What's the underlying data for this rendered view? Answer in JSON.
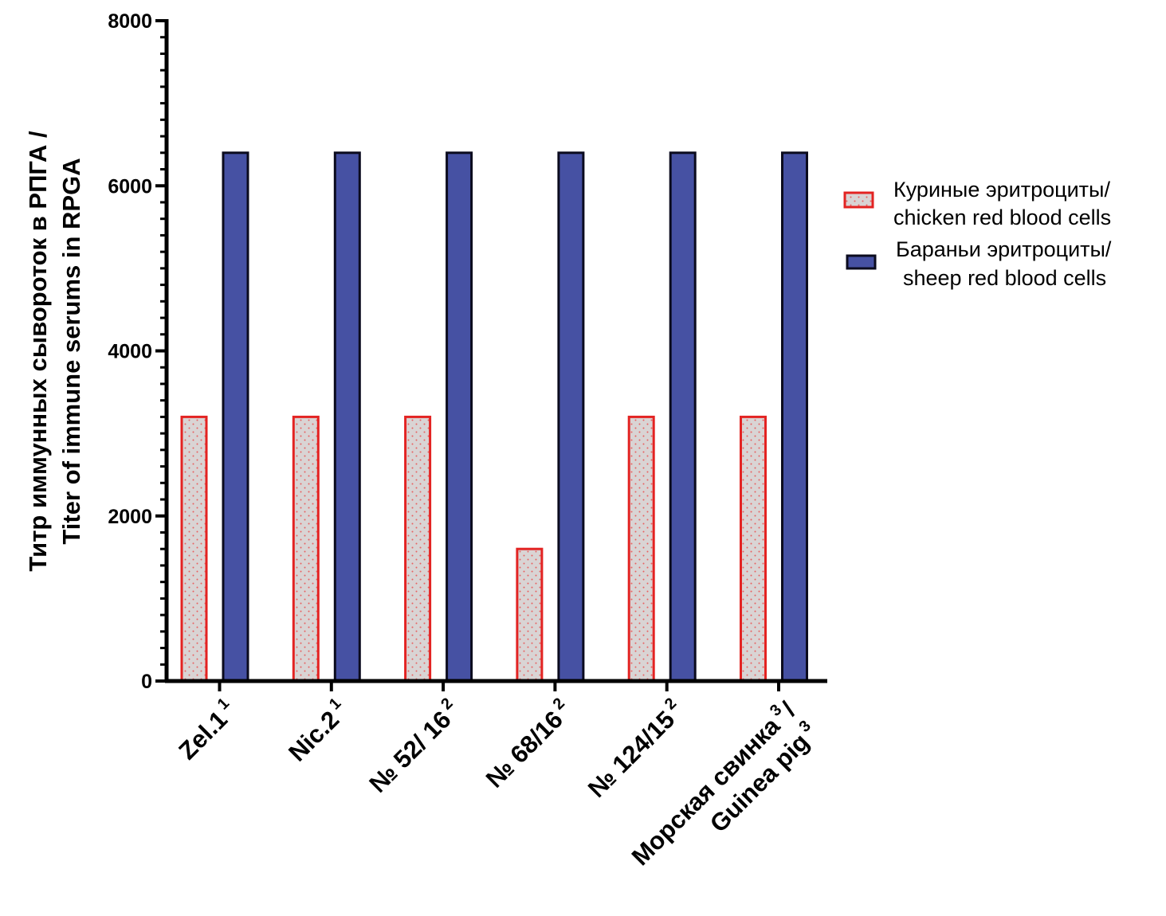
{
  "chart_data": {
    "type": "bar",
    "ylabel_lines": [
      "Титр иммунных сывороток в РПГА /",
      "Titer of immune serums in RPGA"
    ],
    "ylim": [
      0,
      8000
    ],
    "yticks": [
      0,
      2000,
      4000,
      6000,
      8000
    ],
    "ytick_labels": [
      "0",
      "2000",
      "4000",
      "6000",
      "8000"
    ],
    "minor_tick_step": 200,
    "categories": [
      {
        "lines": [
          {
            "text": "Zel.1",
            "sup": "1"
          }
        ]
      },
      {
        "lines": [
          {
            "text": "Nic.2",
            "sup": "1"
          }
        ]
      },
      {
        "lines": [
          {
            "text": "№ 52/ 16",
            "sup": "2"
          }
        ]
      },
      {
        "lines": [
          {
            "text": "№ 68/16",
            "sup": "2"
          }
        ]
      },
      {
        "lines": [
          {
            "text": "№ 124/15",
            "sup": "2"
          }
        ]
      },
      {
        "lines": [
          {
            "text": "Морская свинка",
            "sup": "3",
            "tail": "/"
          },
          {
            "text": "Guinea pig",
            "sup": "3"
          }
        ]
      }
    ],
    "series": [
      {
        "name_lines": [
          "Куриные эритроциты/",
          "chicken red blood cells"
        ],
        "values": [
          3200,
          3200,
          3200,
          1600,
          3200,
          3200
        ],
        "fill": "#d9d4d4",
        "stroke": "#e32322",
        "dots": "#e86060"
      },
      {
        "name_lines": [
          "Бараньи эритроциты/",
          "sheep red blood cells"
        ],
        "values": [
          6400,
          6400,
          6400,
          6400,
          6400,
          6400
        ],
        "fill": "#4651a3",
        "stroke": "#0b0b1e",
        "dots": null
      }
    ],
    "legend_position": "right",
    "grid": false
  }
}
